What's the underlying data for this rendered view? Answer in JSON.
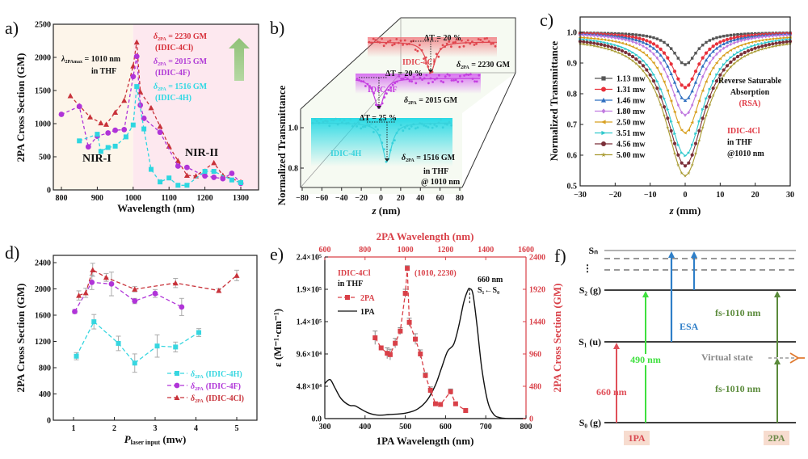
{
  "figure": {
    "panel_labels": [
      "a)",
      "b)",
      "c)",
      "d)",
      "e)",
      "f)"
    ]
  },
  "chart_data": [
    {
      "id": "a",
      "type": "line",
      "xlabel": "Wavelength (nm)",
      "ylabel": "2PA Cross Section (GM)",
      "xlim": [
        785,
        1350
      ],
      "ylim": [
        0,
        2500
      ],
      "xticks": [
        800,
        900,
        1000,
        1100,
        1200,
        1300
      ],
      "yticks": [
        0,
        500,
        1000,
        1500,
        2000,
        2500
      ],
      "regions": [
        {
          "label": "NIR-I",
          "from": 785,
          "to": 1000,
          "color": "#fdf5ea"
        },
        {
          "label": "NIR-II",
          "from": 1000,
          "to": 1350,
          "color": "#fde8ef"
        }
      ],
      "annotations": {
        "lambda": "λ",
        "lambda_sub": "2PAmax",
        "lambda_val": " = 1010 nm",
        "in_thf": "in THF",
        "nir1": "NIR-I",
        "nir2": "NIR-II",
        "delta": "δ",
        "delta_sub": "2PA",
        "entries": [
          {
            "value": " = 2230 GM",
            "name": "(IDIC-4Cl)",
            "color": "#d7303a"
          },
          {
            "value": " = 2015 GM",
            "name": "(IDIC-4F)",
            "color": "#b03ad6"
          },
          {
            "value": " = 1516 GM",
            "name": "(IDIC-4H)",
            "color": "#2fd8e3"
          }
        ],
        "arrow_color": "#92c37a"
      },
      "series": [
        {
          "name": "IDIC-4Cl",
          "marker": "triangle",
          "color": "#c8323a",
          "x": [
            825,
            850,
            880,
            910,
            925,
            950,
            975,
            1000,
            1010,
            1020,
            1050,
            1075,
            1100,
            1125,
            1150,
            1175,
            1225,
            1250,
            1300
          ],
          "y": [
            1420,
            1270,
            1100,
            1010,
            990,
            1170,
            1350,
            1870,
            2230,
            1480,
            1240,
            960,
            660,
            440,
            220,
            210,
            410,
            220,
            120
          ]
        },
        {
          "name": "IDIC-4F",
          "marker": "circle",
          "color": "#b034d8",
          "x": [
            800,
            850,
            875,
            900,
            930,
            950,
            975,
            1000,
            1010,
            1020,
            1030,
            1075,
            1125,
            1150,
            1200,
            1225,
            1250,
            1275,
            1300
          ],
          "y": [
            1140,
            1260,
            650,
            810,
            860,
            900,
            910,
            1710,
            2015,
            1280,
            1080,
            870,
            360,
            340,
            210,
            190,
            170,
            250,
            100
          ]
        },
        {
          "name": "IDIC-4H",
          "marker": "square",
          "color": "#2ed6e0",
          "x": [
            850,
            900,
            910,
            930,
            950,
            980,
            1000,
            1010,
            1030,
            1050,
            1075,
            1100,
            1125,
            1150,
            1200,
            1225,
            1275,
            1300
          ],
          "y": [
            740,
            840,
            580,
            640,
            660,
            800,
            980,
            1560,
            920,
            310,
            120,
            180,
            70,
            70,
            280,
            280,
            150,
            110
          ]
        }
      ]
    },
    {
      "id": "b",
      "type": "scatter",
      "xlabel": "z (nm)",
      "ylabel": "Normalized Transmittance",
      "xlim": [
        -80,
        80
      ],
      "xticks": [
        -80,
        -60,
        -40,
        -20,
        0,
        20,
        40,
        60,
        80
      ],
      "yticks": [
        0.8,
        1.0
      ],
      "conditions": [
        "in THF",
        "@ 1010 nm"
      ],
      "delta": "δ",
      "delta_sub": "2PA",
      "series": [
        {
          "name": "IDIC-4Cl",
          "color": "#e0474f",
          "deltaT": "ΔT = 20 %",
          "delta_val": " = 2230 GM",
          "min_T": 0.8
        },
        {
          "name": "IDIC-4F",
          "color": "#c43fe0",
          "deltaT": "ΔT = 20 %",
          "delta_val": " = 2015 GM",
          "min_T": 0.8
        },
        {
          "name": "IDIC-4H",
          "color": "#37d2dc",
          "deltaT": "ΔT = 25 %",
          "delta_val": " = 1516 GM",
          "min_T": 0.75
        }
      ]
    },
    {
      "id": "c",
      "type": "line",
      "xlabel": "z (mm)",
      "ylabel": "Normalized Transmittance",
      "xlim": [
        -30,
        30
      ],
      "ylim": [
        0.5,
        1.05
      ],
      "xticks": [
        -30,
        -20,
        -10,
        0,
        10,
        20,
        30
      ],
      "yticks": [
        0.5,
        0.6,
        0.7,
        0.8,
        0.9,
        1.0
      ],
      "annotations": {
        "rsa_line1": "Reverse Saturable",
        "rsa_line2": "Absorption",
        "rsa_line3": "(RSA)",
        "compound": "IDIC-4Cl",
        "solvent": "in THF",
        "wavelength": "@1010 nm"
      },
      "series": [
        {
          "name": "1.13 mw",
          "color": "#555555",
          "marker": "square",
          "min": 0.895,
          "baseline": 1.0
        },
        {
          "name": "1.31 mw",
          "color": "#e8313b",
          "marker": "circle",
          "min": 0.82,
          "baseline": 1.0
        },
        {
          "name": "1.46 mw",
          "color": "#2f6fc0",
          "marker": "triangle",
          "min": 0.778,
          "baseline": 1.0
        },
        {
          "name": "1.80 mw",
          "color": "#c07ae0",
          "marker": "diamond",
          "min": 0.73,
          "baseline": 1.0
        },
        {
          "name": "2.50 mw",
          "color": "#d8a020",
          "marker": "tri-left",
          "min": 0.672,
          "baseline": 0.995
        },
        {
          "name": "3.51 mw",
          "color": "#30c8cc",
          "marker": "tri-right",
          "min": 0.598,
          "baseline": 0.995
        },
        {
          "name": "4.56 mw",
          "color": "#7a2f38",
          "marker": "circle",
          "min": 0.565,
          "baseline": 0.99
        },
        {
          "name": "5.00 mw",
          "color": "#a89a30",
          "marker": "star",
          "min": 0.532,
          "baseline": 0.985
        }
      ]
    },
    {
      "id": "d",
      "type": "line",
      "xlabel_main": "P",
      "xlabel_sub": "laser input",
      "xlabel_unit": " (mw)",
      "ylabel": "2PA Cross Section (GM)",
      "xlim": [
        0.5,
        5.5
      ],
      "ylim": [
        0,
        2400
      ],
      "xticks": [
        1,
        2,
        3,
        4,
        5
      ],
      "yticks": [
        0,
        400,
        800,
        1200,
        1600,
        2000,
        2400
      ],
      "legend": {
        "position": "bottom-right",
        "symbol": "δ",
        "sub": "2PA"
      },
      "series": [
        {
          "name": "(IDIC-4H)",
          "color": "#37d6e0",
          "marker": "square",
          "x": [
            1.07,
            1.5,
            2.1,
            2.5,
            3.05,
            3.5,
            4.07
          ],
          "y": [
            975,
            1500,
            1170,
            870,
            1130,
            1115,
            1335
          ],
          "err": [
            55,
            110,
            110,
            140,
            170,
            75,
            60
          ]
        },
        {
          "name": "(IDIC-4F)",
          "color": "#b034d8",
          "marker": "circle",
          "x": [
            1.03,
            1.45,
            1.93,
            2.5,
            3.0,
            3.65
          ],
          "y": [
            1655,
            2100,
            2075,
            1815,
            1930,
            1725
          ],
          "err": [
            30,
            110,
            180,
            40,
            60,
            130
          ]
        },
        {
          "name": "(IDIC-4Cl)",
          "color": "#c8323a",
          "marker": "triangle",
          "x": [
            1.13,
            1.3,
            1.47,
            1.8,
            2.5,
            3.5,
            4.56,
            5.0
          ],
          "y": [
            1900,
            1940,
            2290,
            2175,
            1995,
            2090,
            1975,
            2205
          ],
          "err": [
            70,
            70,
            100,
            60,
            40,
            70,
            30,
            80
          ]
        }
      ]
    },
    {
      "id": "e",
      "type": "line",
      "xlabel": "1PA Wavelength (nm)",
      "x2label": "2PA Wavelength (nm)",
      "ylabel_left": "ε (M⁻¹·cm⁻¹)",
      "ylabel_right": "2PA Cross Section (GM)",
      "xlim": [
        300,
        800
      ],
      "x2lim": [
        600,
        1600
      ],
      "ylim_left": [
        0,
        240000
      ],
      "ylim_right": [
        0,
        2400
      ],
      "xticks": [
        300,
        400,
        500,
        600,
        700,
        800
      ],
      "x2ticks": [
        600,
        800,
        1000,
        1200,
        1400,
        1600
      ],
      "yticks_left": [
        "0.0",
        "4.8×10⁴",
        "9.6×10⁴",
        "1.4×10⁵",
        "1.9×10⁵",
        "2.4×10⁵"
      ],
      "yticks_left_values": [
        0,
        48000,
        96000,
        144000,
        192000,
        240000
      ],
      "yticks_right": [
        0,
        480,
        960,
        1440,
        1920,
        2400
      ],
      "annotations": {
        "compound": "IDIC-4Cl",
        "solvent": "in THF",
        "peak_label": "(1010, 2230)",
        "abs_peak": "660 nm",
        "transition": "S₁←S₀"
      },
      "legend": [
        {
          "name": "2PA",
          "color": "#d94048"
        },
        {
          "name": "1PA",
          "color": "#111111"
        }
      ],
      "series": [
        {
          "name": "1PA",
          "axis": "left",
          "color": "#111111",
          "x": [
            300,
            313,
            325,
            340,
            360,
            375,
            390,
            410,
            435,
            460,
            500,
            530,
            555,
            575,
            590,
            605,
            620,
            632,
            645,
            655,
            660,
            668,
            678,
            690,
            705,
            720,
            735,
            750,
            800
          ],
          "y": [
            52000,
            58000,
            46000,
            30000,
            20000,
            19000,
            14000,
            8000,
            5000,
            6000,
            8000,
            14000,
            28000,
            50000,
            75000,
            100000,
            110000,
            135000,
            172000,
            190000,
            193000,
            185000,
            140000,
            75000,
            25000,
            6000,
            1500,
            300,
            0
          ]
        },
        {
          "name": "2PA",
          "axis": "right",
          "color": "#d94048",
          "x2": [
            850,
            880,
            910,
            925,
            950,
            975,
            1000,
            1010,
            1020,
            1050,
            1075,
            1100,
            1125,
            1150,
            1175,
            1225,
            1250,
            1300
          ],
          "y": [
            1200,
            1050,
            970,
            950,
            1120,
            1300,
            1860,
            2230,
            1430,
            1180,
            960,
            640,
            420,
            220,
            210,
            400,
            220,
            120
          ],
          "err": [
            100,
            0,
            80,
            80,
            70,
            50,
            60,
            40,
            60,
            80,
            60,
            40,
            50,
            0,
            0,
            40,
            0,
            0
          ]
        }
      ]
    },
    {
      "id": "f",
      "type": "diagram",
      "levels": [
        {
          "label": "Sₙ"
        },
        {
          "label": "⋮"
        },
        {
          "label": "S₂ (g)"
        },
        {
          "label": "S₁ (u)"
        },
        {
          "label": "S₀ (g)"
        }
      ],
      "transitions": [
        {
          "label": "660 nm",
          "color": "#e0505a"
        },
        {
          "label": "490 nm",
          "color": "#3fe03f"
        },
        {
          "label": "ESA",
          "color": "#2f7fc8"
        },
        {
          "label": "fs-1010 nm",
          "color": "#5a8a3a"
        }
      ],
      "virtual_state": "Virtual state",
      "badges": [
        {
          "label": "1PA",
          "color": "#d84850"
        },
        {
          "label": "2PA",
          "color": "#6e8a4a"
        }
      ],
      "badge_bg": "#f7dccf"
    }
  ]
}
